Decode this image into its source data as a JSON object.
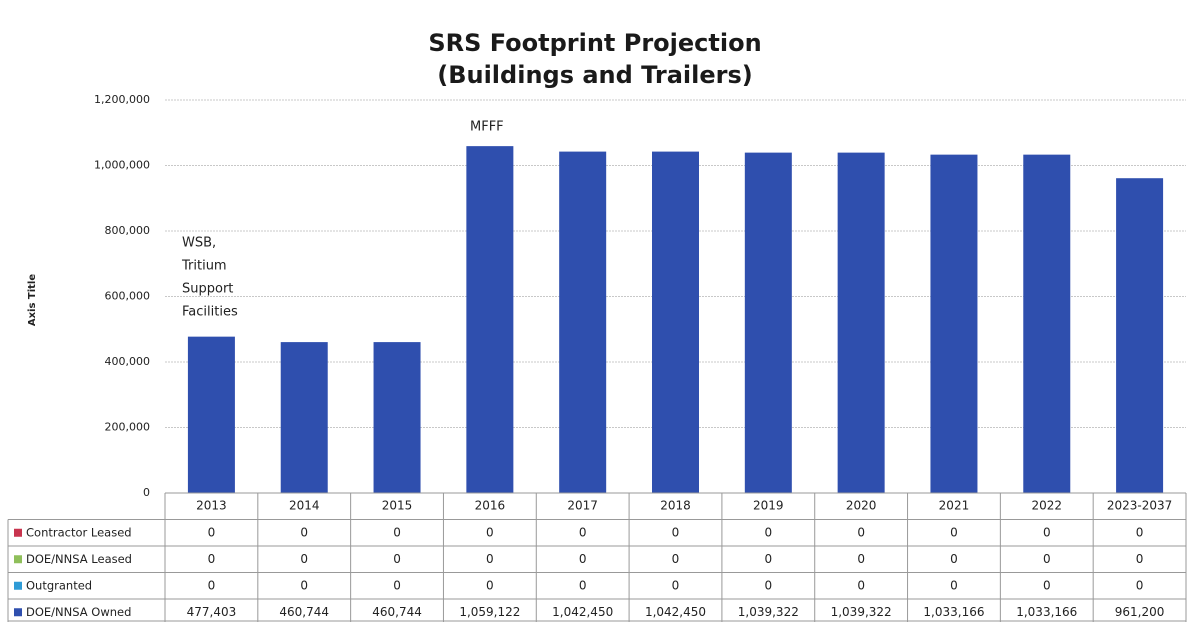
{
  "chart_data": {
    "type": "bar",
    "title": [
      "SRS Footprint Projection",
      "(Buildings and Trailers)"
    ],
    "y_axis_label": "Axis Title",
    "categories": [
      "2013",
      "2014",
      "2015",
      "2016",
      "2017",
      "2018",
      "2019",
      "2020",
      "2021",
      "2022",
      "2023-2037"
    ],
    "series": [
      {
        "name": "Contractor Leased",
        "color": "#c8344e",
        "values": [
          0,
          0,
          0,
          0,
          0,
          0,
          0,
          0,
          0,
          0,
          0
        ]
      },
      {
        "name": "DOE/NNSA Leased",
        "color": "#8fbf5a",
        "values": [
          0,
          0,
          0,
          0,
          0,
          0,
          0,
          0,
          0,
          0,
          0
        ]
      },
      {
        "name": "Outgranted",
        "color": "#2e9bd6",
        "values": [
          0,
          0,
          0,
          0,
          0,
          0,
          0,
          0,
          0,
          0,
          0
        ]
      },
      {
        "name": "DOE/NNSA Owned",
        "color": "#2f4fae",
        "values": [
          477403,
          460744,
          460744,
          1059122,
          1042450,
          1042450,
          1039322,
          1039322,
          1033166,
          1033166,
          961200
        ],
        "value_labels": [
          "477,403",
          "460,744",
          "460,744",
          "1,059,122",
          "1,042,450",
          "1,042,450",
          "1,039,322",
          "1,039,322",
          "1,033,166",
          "1,033,166",
          "961,200"
        ]
      }
    ],
    "stacked": true,
    "ylim": [
      0,
      1200000
    ],
    "yticks": [
      0,
      {
        "value": 200000,
        "label": "200,000"
      },
      {
        "value": 400000,
        "label": "400,000"
      },
      {
        "value": 600000,
        "label": "600,000"
      },
      {
        "value": 800000,
        "label": "800,000"
      },
      {
        "value": 1000000,
        "label": "1,000,000"
      },
      {
        "value": 1200000,
        "label": "1,200,000"
      }
    ],
    "grid": true,
    "annotations": [
      {
        "lines": [
          "WSB,",
          "Tritium",
          "Support",
          "Facilities"
        ]
      },
      {
        "lines": [
          "MFFF"
        ]
      }
    ]
  }
}
